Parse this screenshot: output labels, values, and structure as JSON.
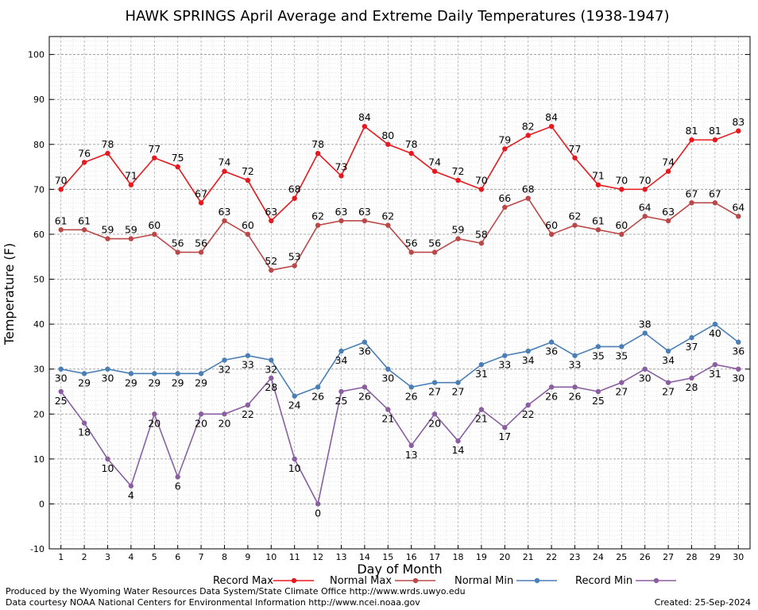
{
  "chart_data": {
    "type": "line",
    "title": "HAWK SPRINGS April Average and Extreme Daily Temperatures (1938-1947)",
    "xlabel": "Day of Month",
    "ylabel": "Temperature (F)",
    "x": [
      1,
      2,
      3,
      4,
      5,
      6,
      7,
      8,
      9,
      10,
      11,
      12,
      13,
      14,
      15,
      16,
      17,
      18,
      19,
      20,
      21,
      22,
      23,
      24,
      25,
      26,
      27,
      28,
      29,
      30
    ],
    "yticks": [
      -10,
      0,
      10,
      20,
      30,
      40,
      50,
      60,
      70,
      80,
      90,
      100
    ],
    "ylim": [
      -10,
      104
    ],
    "xlim": [
      0.5,
      30.5
    ],
    "grid": true,
    "legend_position": "bottom",
    "series": [
      {
        "name": "Record Max",
        "color": "#e8191e",
        "values": [
          70,
          76,
          78,
          71,
          77,
          75,
          67,
          74,
          72,
          63,
          68,
          78,
          73,
          84,
          80,
          78,
          74,
          72,
          70,
          79,
          82,
          84,
          77,
          71,
          70,
          70,
          74,
          81,
          81,
          83
        ],
        "label_pos": [
          "a",
          "a",
          "a",
          "a",
          "a",
          "a",
          "a",
          "a",
          "a",
          "a",
          "a",
          "a",
          "a",
          "a",
          "a",
          "a",
          "a",
          "a",
          "a",
          "a",
          "a",
          "a",
          "a",
          "a",
          "a",
          "a",
          "a",
          "a",
          "a",
          "a"
        ]
      },
      {
        "name": "Normal Max",
        "color": "#bb4848",
        "values": [
          61,
          61,
          59,
          59,
          60,
          56,
          56,
          63,
          60,
          52,
          53,
          62,
          63,
          63,
          62,
          56,
          56,
          59,
          58,
          66,
          68,
          60,
          62,
          61,
          60,
          64,
          63,
          67,
          67,
          64
        ],
        "label_pos": [
          "a",
          "a",
          "a",
          "a",
          "a",
          "a",
          "a",
          "a",
          "a",
          "a",
          "a",
          "a",
          "a",
          "a",
          "a",
          "a",
          "a",
          "a",
          "a",
          "a",
          "a",
          "a",
          "a",
          "a",
          "a",
          "a",
          "a",
          "a",
          "a",
          "a"
        ]
      },
      {
        "name": "Normal Min",
        "color": "#4a7fb5",
        "values": [
          30,
          29,
          30,
          29,
          29,
          29,
          29,
          32,
          33,
          32,
          24,
          26,
          34,
          36,
          30,
          26,
          27,
          27,
          31,
          33,
          34,
          36,
          33,
          35,
          35,
          38,
          34,
          37,
          40,
          36
        ],
        "label_pos": [
          "b",
          "b",
          "b",
          "b",
          "b",
          "b",
          "b",
          "b",
          "b",
          "b",
          "b",
          "b",
          "b",
          "b",
          "b",
          "b",
          "b",
          "b",
          "b",
          "b",
          "b",
          "b",
          "b",
          "b",
          "b",
          "a",
          "b",
          "b",
          "b",
          "b"
        ]
      },
      {
        "name": "Record Min",
        "color": "#8a5ea0",
        "values": [
          25,
          18,
          10,
          4,
          20,
          6,
          20,
          20,
          22,
          28,
          10,
          0,
          25,
          26,
          21,
          13,
          20,
          14,
          21,
          17,
          22,
          26,
          26,
          25,
          27,
          30,
          27,
          28,
          31,
          30
        ],
        "label_pos": [
          "b",
          "b",
          "b",
          "b",
          "b",
          "b",
          "b",
          "b",
          "b",
          "b",
          "b",
          "b",
          "b",
          "b",
          "b",
          "b",
          "b",
          "b",
          "b",
          "b",
          "b",
          "b",
          "b",
          "b",
          "b",
          "b",
          "b",
          "b",
          "b",
          "b"
        ]
      }
    ]
  },
  "legend": {
    "record_max": "Record Max",
    "normal_max": "Normal Max",
    "normal_min": "Normal Min",
    "record_min": "Record Min"
  },
  "footer": {
    "produced_by": "Produced by the Wyoming Water Resources Data System/State Climate Office http://www.wrds.uwyo.edu",
    "data_courtesy": "Data courtesy NOAA National Centers for Environmental Information http://www.ncei.noaa.gov",
    "created": "Created:  25-Sep-2024"
  }
}
